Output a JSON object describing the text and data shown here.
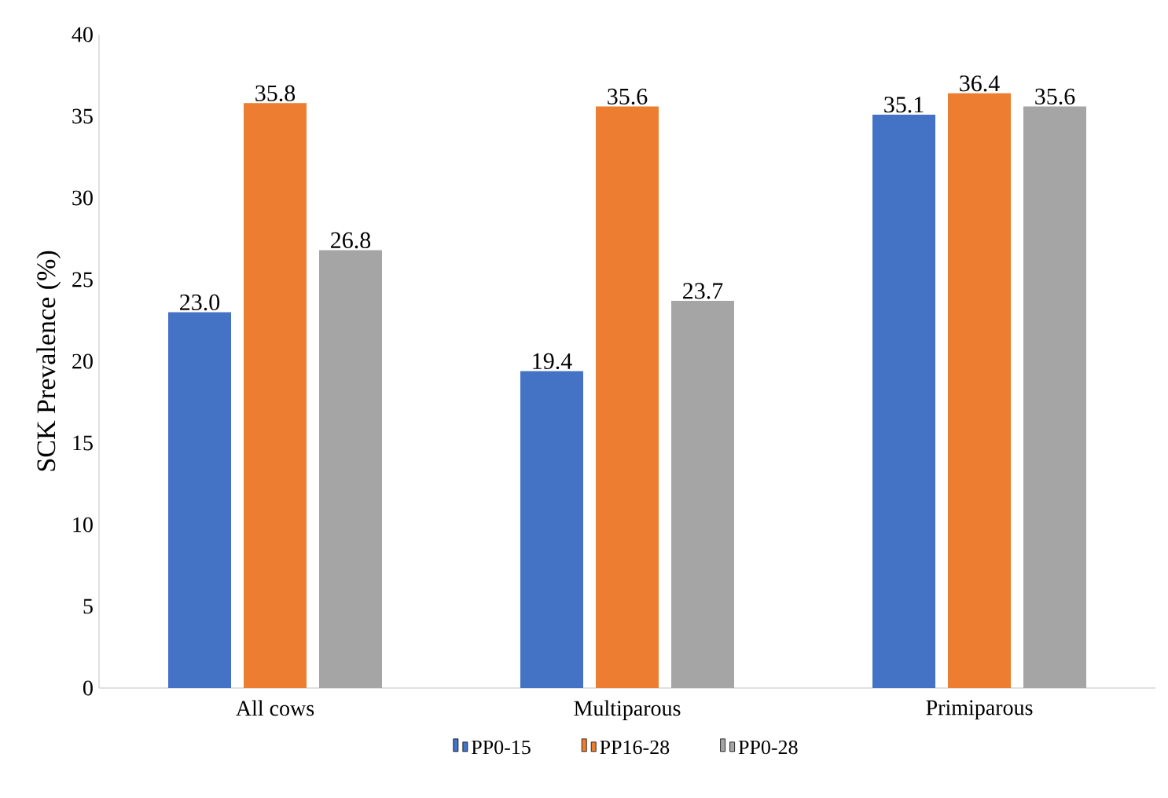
{
  "chart_data": {
    "type": "bar",
    "ylabel": "SCK Prevalence (%)",
    "categories": [
      "All cows",
      "Multiparous",
      "Primiparous"
    ],
    "series": [
      {
        "name": "PP0-15",
        "color": "#4472c4",
        "values": [
          23.0,
          19.4,
          35.1
        ],
        "value_labels": [
          "23.0",
          "19.4",
          "35.1"
        ]
      },
      {
        "name": "PP16-28",
        "color": "#ed7d31",
        "values": [
          35.8,
          35.6,
          36.4
        ],
        "value_labels": [
          "35.8",
          "35.6",
          "36.4"
        ]
      },
      {
        "name": "PP0-28",
        "color": "#a5a5a5",
        "values": [
          26.8,
          23.7,
          35.6
        ],
        "value_labels": [
          "26.8",
          "23.7",
          "35.6"
        ]
      }
    ],
    "ylim": [
      0,
      40
    ],
    "yticks": [
      0,
      5,
      10,
      15,
      20,
      25,
      30,
      35,
      40
    ],
    "grid": false,
    "legend": "bottom"
  }
}
